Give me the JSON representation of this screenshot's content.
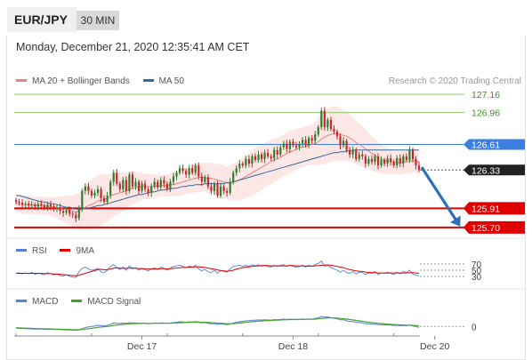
{
  "header": {
    "pair": "EUR/JPY",
    "timeframe": "30 MIN",
    "datetime": "Monday, December 21, 2020 12:35:41 AM CET",
    "credit": "Research © 2020 Trading Central"
  },
  "colors": {
    "candle_up": "#2f7d2f",
    "candle_down": "#c62828",
    "ma20": "#e88080",
    "bollinger_fill": "#fde2e2",
    "ma50": "#35689e",
    "resistance": "#8fc56e",
    "pivot": "#3b7fe0",
    "support": "#e00000",
    "current": "#222222",
    "arrow": "#2f6fb5",
    "rsi": "#5a7fd6",
    "rsi_9ma": "#e00000",
    "macd": "#5a7fd6",
    "macd_signal": "#4aa02c"
  },
  "chart_data": [
    {
      "type": "candlestick",
      "name": "price",
      "legend": [
        {
          "name": "MA 20 + Bollinger Bands",
          "color": "#e88080"
        },
        {
          "name": "MA 50",
          "color": "#35689e"
        }
      ],
      "x_ticks": [
        {
          "label": "Dec 17",
          "index": 40
        },
        {
          "label": "Dec 18",
          "index": 88
        },
        {
          "label": "Dec 20",
          "index": 133
        }
      ],
      "levels": [
        {
          "value": 127.16,
          "label": "127.16",
          "kind": "resistance"
        },
        {
          "value": 126.96,
          "label": "126.96",
          "kind": "resistance"
        },
        {
          "value": 126.61,
          "label": "126.61",
          "kind": "pivot"
        },
        {
          "value": 126.33,
          "label": "126.33",
          "kind": "current"
        },
        {
          "value": 125.91,
          "label": "125.91",
          "kind": "support"
        },
        {
          "value": 125.7,
          "label": "125.70",
          "kind": "support"
        }
      ],
      "ylim": [
        125.64,
        127.22
      ],
      "close": [
        125.98,
        125.97,
        125.95,
        125.96,
        125.94,
        125.95,
        125.93,
        125.96,
        125.94,
        125.92,
        125.95,
        125.93,
        125.9,
        125.92,
        125.88,
        125.86,
        125.89,
        125.85,
        125.84,
        125.8,
        125.9,
        126.1,
        126.15,
        126.1,
        126.05,
        126.08,
        126.12,
        126.02,
        125.98,
        126.05,
        126.2,
        126.3,
        126.18,
        126.12,
        126.22,
        126.1,
        126.28,
        126.15,
        126.2,
        126.1,
        126.18,
        126.12,
        126.08,
        126.15,
        126.2,
        126.14,
        126.22,
        126.18,
        126.12,
        126.2,
        126.26,
        126.3,
        126.35,
        126.32,
        126.28,
        126.35,
        126.3,
        126.38,
        126.26,
        126.2,
        126.25,
        126.15,
        126.1,
        126.18,
        126.05,
        126.15,
        126.1,
        126.08,
        126.2,
        126.3,
        126.35,
        126.4,
        126.38,
        126.45,
        126.4,
        126.48,
        126.44,
        126.5,
        126.45,
        126.52,
        126.48,
        126.46,
        126.55,
        126.5,
        126.58,
        126.62,
        126.56,
        126.64,
        126.6,
        126.58,
        126.62,
        126.66,
        126.6,
        126.68,
        126.65,
        126.72,
        126.8,
        126.98,
        126.8,
        126.88,
        126.78,
        126.75,
        126.7,
        126.6,
        126.65,
        126.55,
        126.5,
        126.55,
        126.45,
        126.5,
        126.48,
        126.4,
        126.45,
        126.42,
        126.48,
        126.38,
        126.44,
        126.4,
        126.46,
        126.42,
        126.38,
        126.46,
        126.4,
        126.48,
        126.44,
        126.55,
        126.45,
        126.38,
        126.33
      ],
      "ma20": [
        125.96,
        125.96,
        125.95,
        125.95,
        125.95,
        125.95,
        125.94,
        125.94,
        125.94,
        125.94,
        125.93,
        125.93,
        125.92,
        125.92,
        125.91,
        125.9,
        125.9,
        125.89,
        125.88,
        125.87,
        125.88,
        125.9,
        125.92,
        125.94,
        125.95,
        125.97,
        125.99,
        126.0,
        126.01,
        126.02,
        126.04,
        126.06,
        126.07,
        126.08,
        126.09,
        126.1,
        126.12,
        126.13,
        126.14,
        126.14,
        126.15,
        126.15,
        126.15,
        126.15,
        126.15,
        126.15,
        126.16,
        126.16,
        126.16,
        126.17,
        126.17,
        126.18,
        126.19,
        126.2,
        126.21,
        126.22,
        126.23,
        126.24,
        126.25,
        126.25,
        126.25,
        126.24,
        126.24,
        126.23,
        126.22,
        126.21,
        126.2,
        126.19,
        126.19,
        126.2,
        126.21,
        126.22,
        126.24,
        126.26,
        126.28,
        126.3,
        126.32,
        126.34,
        126.36,
        126.38,
        126.4,
        126.42,
        126.44,
        126.45,
        126.47,
        126.49,
        126.51,
        126.53,
        126.54,
        126.56,
        126.57,
        126.58,
        126.59,
        126.6,
        126.61,
        126.62,
        126.64,
        126.67,
        126.69,
        126.71,
        126.72,
        126.73,
        126.73,
        126.72,
        126.71,
        126.7,
        126.68,
        126.66,
        126.63,
        126.61,
        126.59,
        126.56,
        126.54,
        126.51,
        126.49,
        126.47,
        126.45,
        126.44,
        126.43,
        126.42,
        126.42,
        126.41,
        126.41,
        126.42,
        126.42,
        126.43,
        126.43,
        126.43,
        126.42
      ],
      "bb_width": [
        0.1,
        0.1,
        0.1,
        0.1,
        0.1,
        0.1,
        0.1,
        0.1,
        0.1,
        0.1,
        0.1,
        0.1,
        0.11,
        0.12,
        0.13,
        0.14,
        0.15,
        0.16,
        0.17,
        0.19,
        0.2,
        0.22,
        0.24,
        0.26,
        0.27,
        0.28,
        0.29,
        0.28,
        0.27,
        0.26,
        0.25,
        0.24,
        0.23,
        0.22,
        0.21,
        0.2,
        0.19,
        0.18,
        0.17,
        0.16,
        0.15,
        0.14,
        0.14,
        0.13,
        0.13,
        0.12,
        0.12,
        0.12,
        0.12,
        0.12,
        0.13,
        0.13,
        0.14,
        0.14,
        0.15,
        0.15,
        0.15,
        0.16,
        0.16,
        0.16,
        0.16,
        0.17,
        0.17,
        0.17,
        0.18,
        0.18,
        0.18,
        0.18,
        0.19,
        0.2,
        0.21,
        0.22,
        0.23,
        0.24,
        0.24,
        0.25,
        0.25,
        0.25,
        0.25,
        0.24,
        0.24,
        0.24,
        0.24,
        0.23,
        0.23,
        0.23,
        0.23,
        0.23,
        0.23,
        0.22,
        0.22,
        0.22,
        0.22,
        0.22,
        0.22,
        0.24,
        0.26,
        0.28,
        0.3,
        0.3,
        0.3,
        0.3,
        0.3,
        0.29,
        0.28,
        0.27,
        0.26,
        0.25,
        0.24,
        0.23,
        0.22,
        0.21,
        0.2,
        0.19,
        0.18,
        0.17,
        0.16,
        0.15,
        0.14,
        0.14,
        0.13,
        0.13,
        0.13,
        0.13,
        0.13,
        0.13,
        0.13,
        0.13,
        0.13
      ],
      "ma50": [
        126.05,
        126.05,
        126.04,
        126.03,
        126.02,
        126.01,
        126.0,
        125.99,
        125.98,
        125.98,
        125.97,
        125.96,
        125.96,
        125.95,
        125.94,
        125.93,
        125.92,
        125.92,
        125.91,
        125.9,
        125.9,
        125.9,
        125.91,
        125.91,
        125.92,
        125.93,
        125.94,
        125.94,
        125.95,
        125.96,
        125.97,
        125.98,
        125.99,
        126.0,
        126.01,
        126.02,
        126.03,
        126.04,
        126.05,
        126.06,
        126.06,
        126.07,
        126.08,
        126.09,
        126.09,
        126.1,
        126.11,
        126.11,
        126.12,
        126.12,
        126.13,
        126.13,
        126.14,
        126.15,
        126.15,
        126.16,
        126.16,
        126.17,
        126.17,
        126.17,
        126.18,
        126.18,
        126.18,
        126.18,
        126.18,
        126.18,
        126.18,
        126.19,
        126.19,
        126.2,
        126.21,
        126.22,
        126.23,
        126.24,
        126.25,
        126.26,
        126.27,
        126.28,
        126.29,
        126.3,
        126.31,
        126.32,
        126.33,
        126.34,
        126.35,
        126.36,
        126.37,
        126.38,
        126.39,
        126.4,
        126.41,
        126.42,
        126.43,
        126.44,
        126.45,
        126.46,
        126.47,
        126.48,
        126.49,
        126.5,
        126.51,
        126.52,
        126.52,
        126.53,
        126.53,
        126.54,
        126.54,
        126.55,
        126.55,
        126.55,
        126.55,
        126.55,
        126.55,
        126.55,
        126.55,
        126.55,
        126.55,
        126.55,
        126.55,
        126.55,
        126.55,
        126.55,
        126.55,
        126.55,
        126.55,
        126.55,
        126.55,
        126.55,
        126.55
      ]
    },
    {
      "type": "line",
      "name": "rsi",
      "legend": [
        {
          "name": "RSI",
          "color": "#5a7fd6"
        },
        {
          "name": "9MA",
          "color": "#e00000"
        }
      ],
      "levels": [
        {
          "value": 70,
          "label": "70"
        },
        {
          "value": 50,
          "label": "50"
        },
        {
          "value": 30,
          "label": "30"
        }
      ],
      "ylim": [
        10,
        90
      ],
      "rsi": [
        40,
        42,
        38,
        41,
        39,
        43,
        37,
        40,
        38,
        36,
        42,
        39,
        35,
        38,
        33,
        31,
        36,
        30,
        28,
        27,
        45,
        56,
        60,
        54,
        50,
        52,
        56,
        45,
        42,
        50,
        62,
        68,
        58,
        52,
        60,
        50,
        64,
        54,
        58,
        50,
        56,
        52,
        48,
        54,
        58,
        52,
        60,
        56,
        50,
        57,
        62,
        64,
        66,
        62,
        58,
        64,
        60,
        66,
        54,
        48,
        53,
        45,
        42,
        50,
        40,
        50,
        46,
        44,
        55,
        62,
        64,
        66,
        62,
        66,
        62,
        68,
        64,
        68,
        62,
        66,
        62,
        60,
        66,
        62,
        66,
        68,
        62,
        66,
        62,
        60,
        62,
        66,
        60,
        66,
        62,
        68,
        72,
        80,
        62,
        66,
        58,
        55,
        50,
        44,
        50,
        42,
        40,
        46,
        38,
        44,
        42,
        36,
        42,
        40,
        46,
        36,
        42,
        40,
        44,
        40,
        36,
        44,
        38,
        46,
        42,
        50,
        38,
        34,
        32
      ],
      "ma9": [
        40,
        40,
        40,
        40,
        40,
        40,
        40,
        40,
        40,
        39,
        39,
        39,
        38,
        38,
        37,
        36,
        35,
        34,
        33,
        32,
        34,
        37,
        40,
        43,
        46,
        49,
        52,
        53,
        51,
        52,
        54,
        57,
        58,
        57,
        56,
        56,
        57,
        57,
        57,
        55,
        55,
        55,
        54,
        54,
        54,
        54,
        55,
        55,
        54,
        55,
        56,
        57,
        58,
        59,
        59,
        60,
        60,
        61,
        61,
        60,
        59,
        57,
        55,
        53,
        51,
        49,
        48,
        47,
        48,
        50,
        53,
        56,
        58,
        60,
        61,
        62,
        63,
        64,
        65,
        65,
        65,
        64,
        64,
        64,
        64,
        64,
        64,
        65,
        65,
        64,
        64,
        64,
        63,
        63,
        63,
        64,
        65,
        66,
        67,
        67,
        66,
        64,
        62,
        60,
        58,
        55,
        52,
        50,
        48,
        47,
        46,
        44,
        43,
        42,
        42,
        41,
        41,
        41,
        41,
        41,
        41,
        41,
        41,
        41,
        41,
        42,
        42,
        41,
        40
      ]
    },
    {
      "type": "line",
      "name": "macd",
      "legend": [
        {
          "name": "MACD",
          "color": "#5a7fd6"
        },
        {
          "name": "MACD Signal",
          "color": "#4aa02c"
        }
      ],
      "levels": [
        {
          "value": 0,
          "label": "0"
        }
      ],
      "ylim": [
        -0.09,
        0.22
      ],
      "macd": [
        -0.02,
        -0.022,
        -0.024,
        -0.025,
        -0.027,
        -0.028,
        -0.03,
        -0.03,
        -0.031,
        -0.032,
        -0.032,
        -0.033,
        -0.034,
        -0.035,
        -0.036,
        -0.038,
        -0.039,
        -0.041,
        -0.043,
        -0.045,
        -0.04,
        -0.025,
        -0.012,
        -0.005,
        0.0,
        0.005,
        0.012,
        0.01,
        0.008,
        0.012,
        0.025,
        0.04,
        0.038,
        0.034,
        0.04,
        0.036,
        0.045,
        0.04,
        0.042,
        0.036,
        0.04,
        0.036,
        0.032,
        0.036,
        0.04,
        0.036,
        0.042,
        0.04,
        0.036,
        0.04,
        0.045,
        0.05,
        0.055,
        0.054,
        0.05,
        0.055,
        0.052,
        0.058,
        0.05,
        0.042,
        0.045,
        0.036,
        0.03,
        0.034,
        0.024,
        0.03,
        0.026,
        0.022,
        0.03,
        0.04,
        0.048,
        0.056,
        0.06,
        0.066,
        0.066,
        0.072,
        0.072,
        0.076,
        0.074,
        0.078,
        0.076,
        0.074,
        0.08,
        0.078,
        0.082,
        0.086,
        0.082,
        0.086,
        0.084,
        0.082,
        0.084,
        0.088,
        0.084,
        0.088,
        0.086,
        0.092,
        0.1,
        0.118,
        0.108,
        0.11,
        0.102,
        0.096,
        0.09,
        0.078,
        0.078,
        0.066,
        0.058,
        0.058,
        0.046,
        0.046,
        0.042,
        0.032,
        0.032,
        0.028,
        0.03,
        0.02,
        0.022,
        0.018,
        0.02,
        0.016,
        0.01,
        0.014,
        0.008,
        0.012,
        0.008,
        0.016,
        0.006,
        -0.002,
        -0.01
      ],
      "signal": [
        -0.015,
        -0.016,
        -0.018,
        -0.019,
        -0.021,
        -0.022,
        -0.024,
        -0.025,
        -0.026,
        -0.027,
        -0.028,
        -0.029,
        -0.03,
        -0.031,
        -0.032,
        -0.033,
        -0.034,
        -0.035,
        -0.037,
        -0.038,
        -0.038,
        -0.036,
        -0.031,
        -0.026,
        -0.021,
        -0.016,
        -0.01,
        -0.006,
        -0.003,
        0.0,
        0.005,
        0.012,
        0.017,
        0.021,
        0.024,
        0.027,
        0.03,
        0.032,
        0.034,
        0.035,
        0.036,
        0.036,
        0.036,
        0.036,
        0.037,
        0.037,
        0.038,
        0.038,
        0.038,
        0.038,
        0.039,
        0.041,
        0.043,
        0.045,
        0.046,
        0.048,
        0.049,
        0.051,
        0.051,
        0.05,
        0.049,
        0.047,
        0.044,
        0.042,
        0.039,
        0.037,
        0.035,
        0.032,
        0.032,
        0.033,
        0.036,
        0.04,
        0.044,
        0.048,
        0.052,
        0.056,
        0.059,
        0.062,
        0.065,
        0.067,
        0.069,
        0.07,
        0.072,
        0.073,
        0.075,
        0.077,
        0.078,
        0.08,
        0.081,
        0.081,
        0.082,
        0.083,
        0.083,
        0.084,
        0.085,
        0.086,
        0.089,
        0.094,
        0.097,
        0.1,
        0.1,
        0.099,
        0.097,
        0.093,
        0.09,
        0.086,
        0.08,
        0.076,
        0.07,
        0.065,
        0.06,
        0.054,
        0.05,
        0.045,
        0.042,
        0.037,
        0.034,
        0.031,
        0.028,
        0.026,
        0.023,
        0.021,
        0.018,
        0.017,
        0.015,
        0.015,
        0.013,
        0.01,
        0.006
      ]
    }
  ]
}
